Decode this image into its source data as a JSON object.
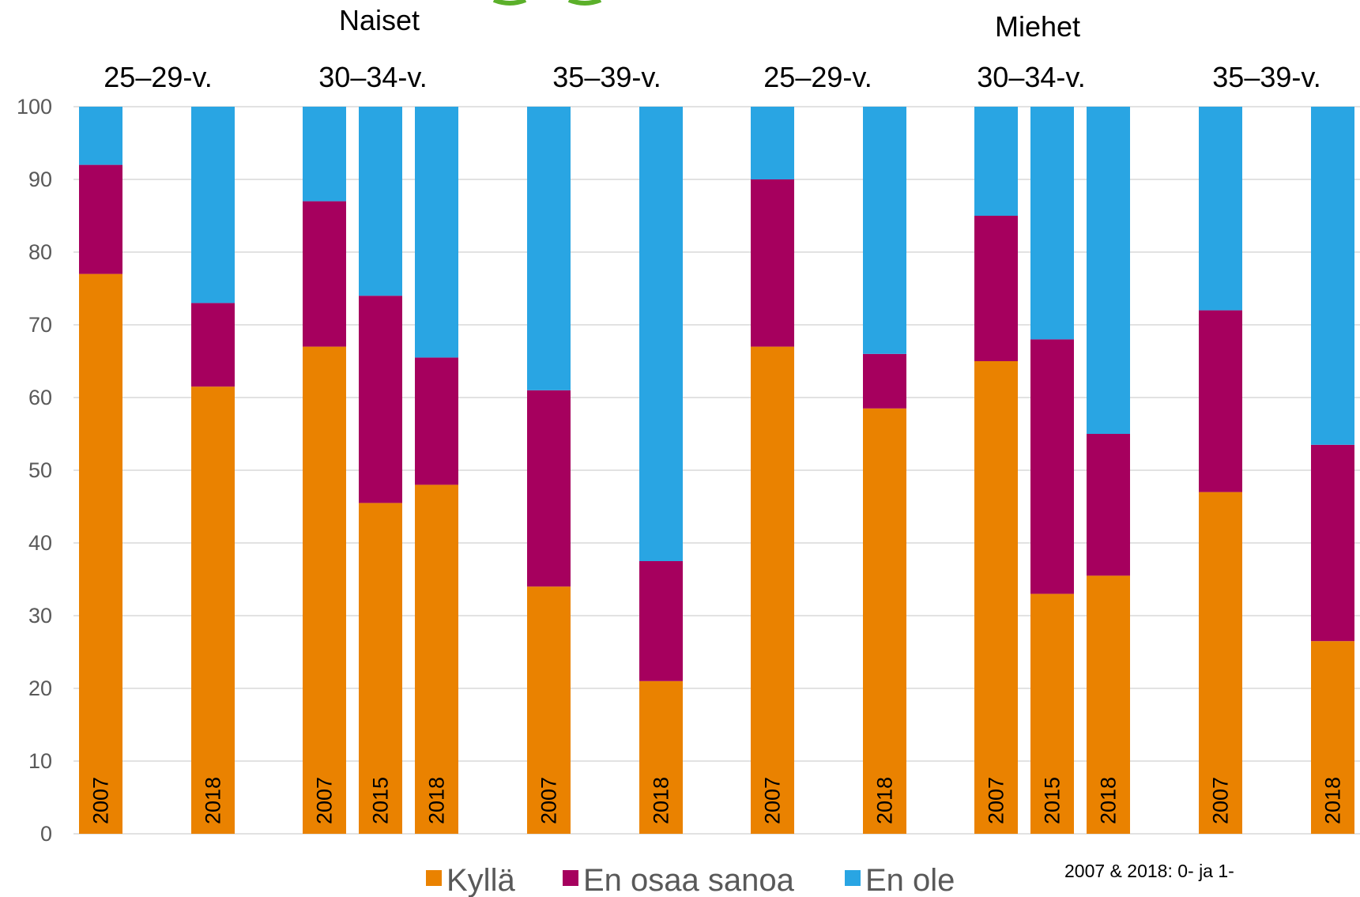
{
  "chart_data": {
    "type": "bar",
    "stacked": true,
    "ylim": [
      0,
      100
    ],
    "yticks": [
      0,
      10,
      20,
      30,
      40,
      50,
      60,
      70,
      80,
      90,
      100
    ],
    "grid": true,
    "legend_position": "bottom",
    "series": [
      {
        "name": "Kyllä",
        "color": "#EA8200"
      },
      {
        "name": "En osaa sanoa",
        "color": "#A6005E"
      },
      {
        "name": "En ole",
        "color": "#29A5E3"
      }
    ],
    "genders": [
      {
        "label": "Naiset"
      },
      {
        "label": "Miehet"
      }
    ],
    "groups": [
      {
        "label": "25–29-v.",
        "gender": "Naiset",
        "bars": [
          {
            "year": "2007",
            "values": [
              77,
              15,
              8
            ]
          },
          {
            "year": "2018",
            "values": [
              61.5,
              11.5,
              27
            ]
          }
        ]
      },
      {
        "label": "30–34-v.",
        "gender": "Naiset",
        "bars": [
          {
            "year": "2007",
            "values": [
              67,
              20,
              13
            ]
          },
          {
            "year": "2015",
            "values": [
              45.5,
              28.5,
              26
            ]
          },
          {
            "year": "2018",
            "values": [
              48,
              17.5,
              34.5
            ]
          }
        ]
      },
      {
        "label": "35–39-v.",
        "gender": "Naiset",
        "bars": [
          {
            "year": "2007",
            "values": [
              34,
              27,
              39
            ]
          },
          {
            "year": "2018",
            "values": [
              21,
              16.5,
              62.5
            ]
          }
        ]
      },
      {
        "label": "25–29-v.",
        "gender": "Miehet",
        "bars": [
          {
            "year": "2007",
            "values": [
              67,
              23,
              10
            ]
          },
          {
            "year": "2018",
            "values": [
              58.5,
              7.5,
              34
            ]
          }
        ]
      },
      {
        "label": "30–34-v.",
        "gender": "Miehet",
        "bars": [
          {
            "year": "2007",
            "values": [
              65,
              20,
              15
            ]
          },
          {
            "year": "2015",
            "values": [
              33,
              35,
              32
            ]
          },
          {
            "year": "2018",
            "values": [
              35.5,
              19.5,
              45
            ]
          }
        ]
      },
      {
        "label": "35–39-v.",
        "gender": "Miehet",
        "bars": [
          {
            "year": "2007",
            "values": [
              47,
              25,
              28
            ]
          },
          {
            "year": "2018",
            "values": [
              26.5,
              27,
              46.5
            ]
          }
        ]
      }
    ],
    "note": "2007 & 2018: 0- ja 1-"
  }
}
